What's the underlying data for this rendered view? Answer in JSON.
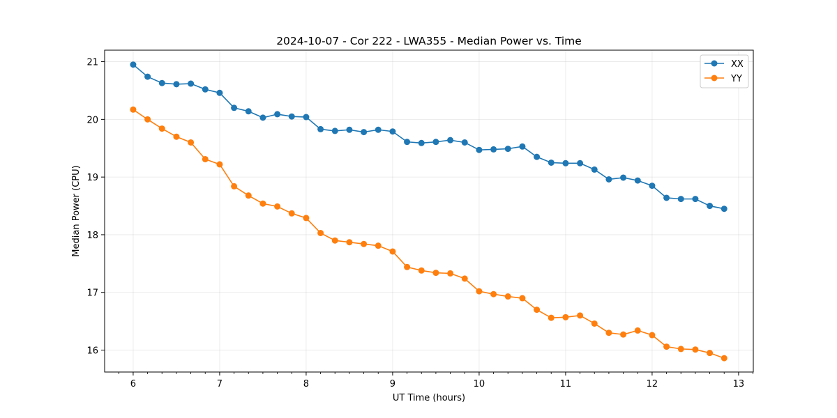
{
  "chart_data": {
    "type": "line",
    "title": "2024-10-07 - Cor 222 - LWA355 - Median Power vs. Time",
    "xlabel": "UT Time (hours)",
    "ylabel": "Median Power (CPU)",
    "xlim": [
      5.67,
      13.17
    ],
    "ylim": [
      15.62,
      21.2
    ],
    "xticks": [
      6,
      7,
      8,
      9,
      10,
      11,
      12,
      13
    ],
    "xtick_labels": [
      "6",
      "7",
      "8",
      "9",
      "10",
      "11",
      "12",
      "13"
    ],
    "yticks": [
      16,
      17,
      18,
      19,
      20,
      21
    ],
    "ytick_labels": [
      "16",
      "17",
      "18",
      "19",
      "20",
      "21"
    ],
    "grid": true,
    "legend_position": "top-right",
    "x": [
      6.0,
      6.1667,
      6.3333,
      6.5,
      6.6667,
      6.8333,
      7.0,
      7.1667,
      7.3333,
      7.5,
      7.6667,
      7.8333,
      8.0,
      8.1667,
      8.3333,
      8.5,
      8.6667,
      8.8333,
      9.0,
      9.1667,
      9.3333,
      9.5,
      9.6667,
      9.8333,
      10.0,
      10.1667,
      10.3333,
      10.5,
      10.6667,
      10.8333,
      11.0,
      11.1667,
      11.3333,
      11.5,
      11.6667,
      11.8333,
      12.0,
      12.1667,
      12.3333,
      12.5,
      12.6667,
      12.8333
    ],
    "series": [
      {
        "name": "XX",
        "color": "#1f77b4",
        "values": [
          20.95,
          20.74,
          20.63,
          20.61,
          20.62,
          20.52,
          20.46,
          20.2,
          20.14,
          20.03,
          20.09,
          20.05,
          20.04,
          19.83,
          19.8,
          19.82,
          19.78,
          19.82,
          19.79,
          19.61,
          19.59,
          19.61,
          19.64,
          19.6,
          19.47,
          19.48,
          19.49,
          19.53,
          19.35,
          19.25,
          19.24,
          19.24,
          19.13,
          18.96,
          18.99,
          18.94,
          18.85,
          18.64,
          18.62,
          18.62,
          18.5,
          18.45
        ]
      },
      {
        "name": "YY",
        "color": "#ff7f0e",
        "values": [
          20.17,
          20.0,
          19.84,
          19.7,
          19.6,
          19.31,
          19.22,
          18.84,
          18.68,
          18.54,
          18.49,
          18.37,
          18.29,
          18.03,
          17.9,
          17.87,
          17.84,
          17.81,
          17.71,
          17.44,
          17.38,
          17.34,
          17.33,
          17.24,
          17.02,
          16.97,
          16.93,
          16.9,
          16.7,
          16.56,
          16.57,
          16.6,
          16.46,
          16.3,
          16.27,
          16.34,
          16.26,
          16.06,
          16.02,
          16.01,
          15.95,
          15.86
        ]
      }
    ]
  }
}
